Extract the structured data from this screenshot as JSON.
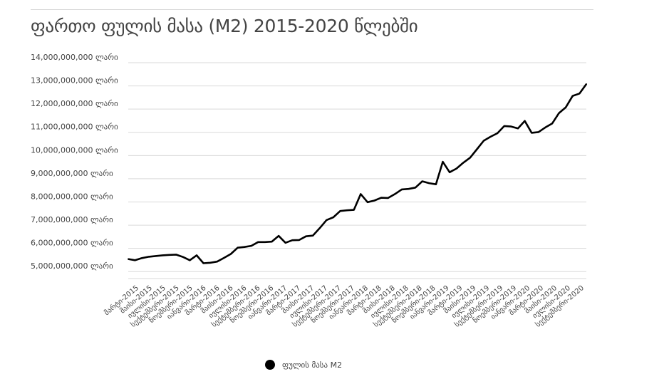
{
  "title": "ფართო ფულის მასა (M2) 2015-2020 წლებში",
  "legend": {
    "label": "ფულის მასა M2"
  },
  "colors": {
    "line": "#000000",
    "grid": "#d9d9d9",
    "text": "#444444"
  },
  "chart_data": {
    "type": "line",
    "title": "ფართო ფულის მასა (M2) 2015-2020 წლებში",
    "xlabel": "",
    "ylabel": "",
    "ylim": [
      4700000000,
      14000000000
    ],
    "y_ticks": [
      "14,000,000,000 ლარი",
      "13,000,000,000 ლარი",
      "12,000,000,000 ლარი",
      "11,000,000,000 ლარი",
      "10,000,000,000 ლარი",
      "9,000,000,000 ლარი",
      "8,000,000,000 ლარი",
      "7,000,000,000 ლარი",
      "6,000,000,000 ლარი",
      "5,000,000,000 ლარი"
    ],
    "y_tick_values": [
      14000000000,
      13000000000,
      12000000000,
      11000000000,
      10000000000,
      9000000000,
      8000000000,
      7000000000,
      6000000000,
      5000000000
    ],
    "x_tick_labels": [
      "მარტი-2015",
      "მაისი-2015",
      "ივლისი-2015",
      "სექტემბერი-2015",
      "ნოემბერი-2015",
      "იანვარი-2016",
      "მარტი-2016",
      "მაისი-2016",
      "ივლისი-2016",
      "სექტემბერი-2016",
      "ნოემბერი-2016",
      "იანვარი-2017",
      "მარტი-2017",
      "მაისი-2017",
      "ივლისი-2017",
      "სექტემბერი-2017",
      "ნოემბერი-2017",
      "იანვარი-2018",
      "მარტი-2018",
      "მაისი-2018",
      "ივლისი-2018",
      "სექტემბერი-2018",
      "ნოემბერი-2018",
      "იანვარი-2019",
      "მარტი-2019",
      "მაისი-2019",
      "ივლისი-2019",
      "სექტემბერი-2019",
      "ნოემბერი-2019",
      "იანვარი-2020",
      "მარტი-2020",
      "მაისი-2020",
      "ივლისი-2020",
      "სექტემბერი-2020"
    ],
    "x_start": "მარტი-2015",
    "x_end": "სექტემბერი-2020",
    "grid": true,
    "legend_position": "bottom",
    "series": [
      {
        "name": "ფულის მასა M2",
        "values": [
          5540000000,
          5490000000,
          5580000000,
          5640000000,
          5670000000,
          5700000000,
          5720000000,
          5730000000,
          5630000000,
          5490000000,
          5700000000,
          5360000000,
          5380000000,
          5430000000,
          5590000000,
          5760000000,
          6030000000,
          6060000000,
          6110000000,
          6270000000,
          6270000000,
          6290000000,
          6540000000,
          6240000000,
          6350000000,
          6360000000,
          6520000000,
          6550000000,
          6870000000,
          7220000000,
          7340000000,
          7610000000,
          7640000000,
          7660000000,
          8340000000,
          7990000000,
          8060000000,
          8180000000,
          8170000000,
          8340000000,
          8540000000,
          8560000000,
          8620000000,
          8890000000,
          8810000000,
          8760000000,
          9730000000,
          9280000000,
          9440000000,
          9690000000,
          9910000000,
          10270000000,
          10640000000,
          10810000000,
          10960000000,
          11270000000,
          11250000000,
          11170000000,
          11490000000,
          10980000000,
          11010000000,
          11210000000,
          11380000000,
          11830000000,
          12080000000,
          12570000000,
          12670000000,
          13080000000
        ]
      }
    ]
  }
}
